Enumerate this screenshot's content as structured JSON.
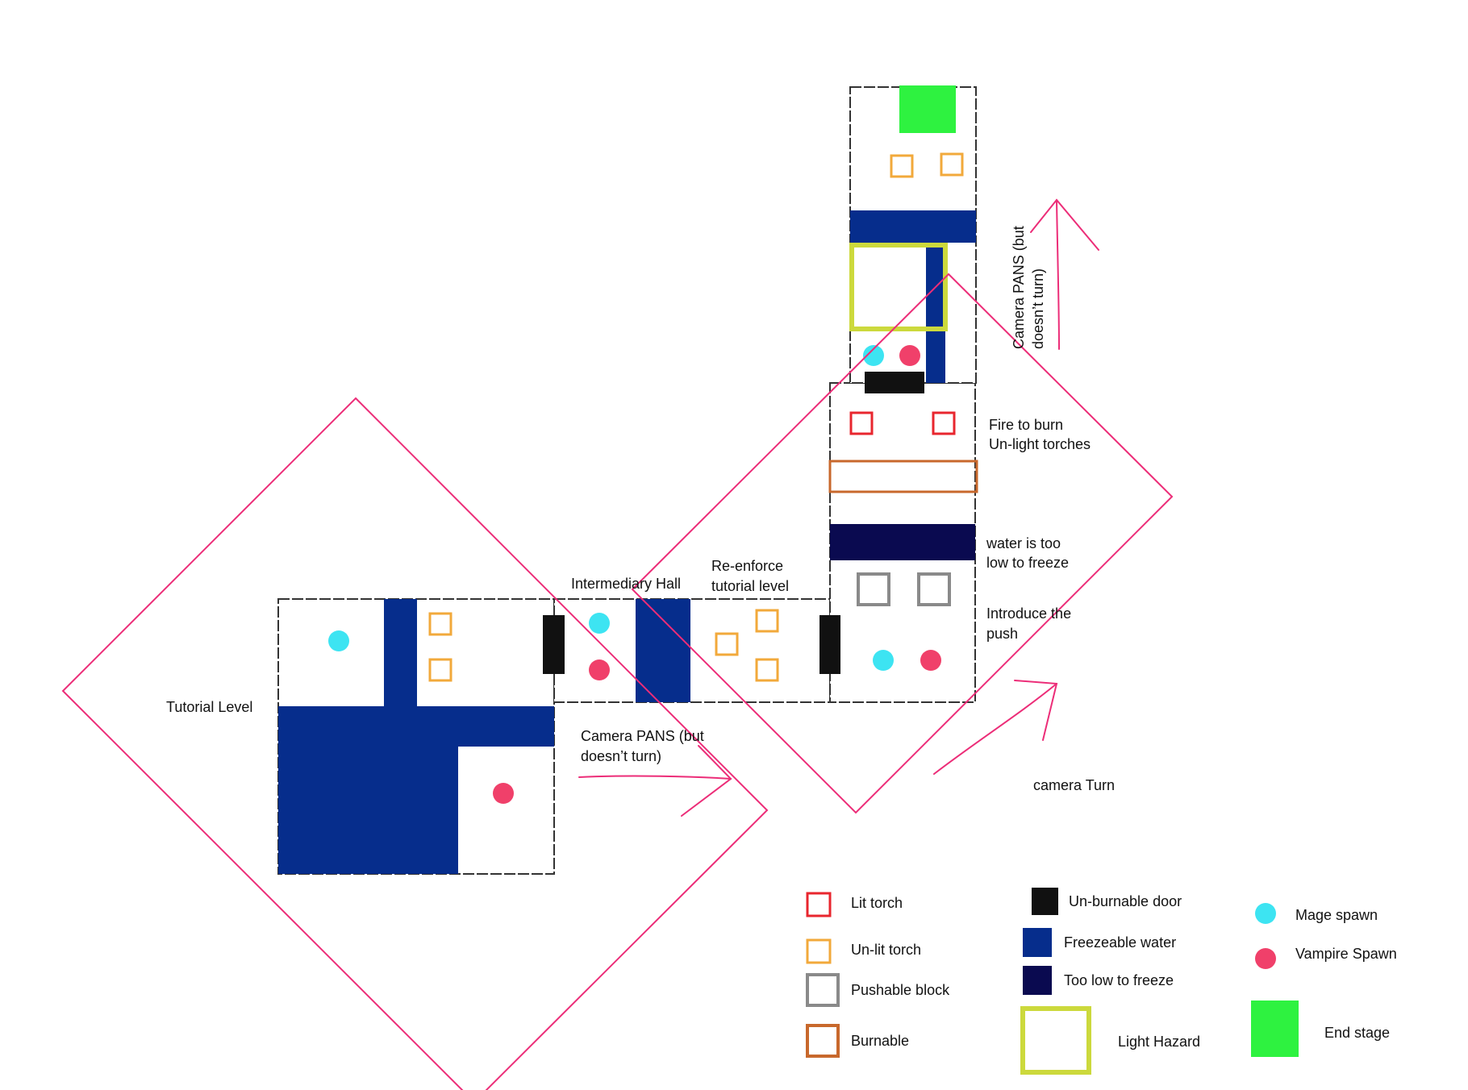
{
  "colors": {
    "lit_torch": "#e8262e",
    "unlit_torch": "#f2a93b",
    "pushable_block": "#8a8a8a",
    "burnable": "#c8682c",
    "door": "#111111",
    "freezeable_water": "#062d8c",
    "too_low_to_freeze": "#0a0a50",
    "light_hazard": "#ccd93c",
    "end_stage": "#2ef240",
    "mage_spawn": "#3de4f2",
    "vampire_spawn": "#f0406a",
    "camera_zone": "#ec2d78"
  },
  "labels": {
    "tutorial_level": "Tutorial Level",
    "intermediary_hall": "Intermediary Hall",
    "reenforce_1": "Re-enforce",
    "reenforce_2": "tutorial level",
    "camera_pans_1": "Camera PANS (but",
    "camera_pans_2": "doesn’t turn)",
    "camera_turn": "camera Turn",
    "introduce_1": "Introduce the",
    "introduce_2": "push",
    "water_low_1": "water is too",
    "water_low_2": "low to freeze",
    "fire_1": "Fire to burn",
    "fire_2": "Un-light torches",
    "camera_pans_v1": "Camera PANS (but",
    "camera_pans_v2": "doesn’t turn)"
  },
  "legend": {
    "lit_torch": "Lit torch",
    "unlit_torch": "Un-lit torch",
    "pushable_block": "Pushable block",
    "burnable": "Burnable",
    "door": "Un-burnable door",
    "freezeable_water": "Freezeable water",
    "too_low": "Too low to freeze",
    "light_hazard": "Light Hazard",
    "mage_spawn": "Mage spawn",
    "vampire_spawn": "Vampire Spawn",
    "end_stage": "End stage"
  }
}
